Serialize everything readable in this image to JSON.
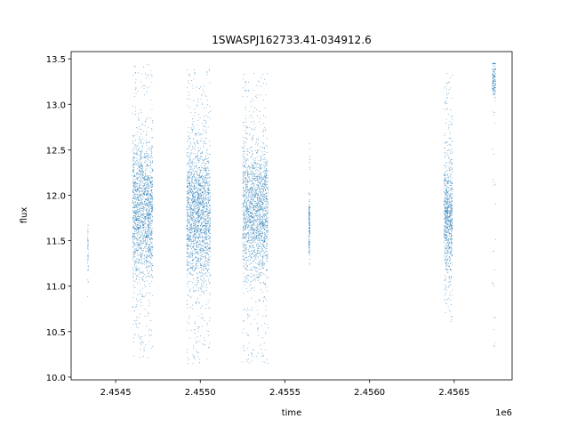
{
  "chart_data": {
    "type": "scatter",
    "title": "1SWASPJ162733.41-034912.6",
    "xlabel": "time",
    "ylabel": "flux",
    "x_offset_label": "1e6",
    "xlim": [
      2454237,
      2456842
    ],
    "ylim": [
      9.97,
      13.58
    ],
    "xticks": [
      2454500,
      2455000,
      2455500,
      2456000,
      2456500
    ],
    "xtick_labels": [
      "2.4545",
      "2.4550",
      "2.4555",
      "2.4560",
      "2.4565"
    ],
    "yticks": [
      10.0,
      10.5,
      11.0,
      11.5,
      12.0,
      12.5,
      13.0,
      13.5
    ],
    "ytick_labels": [
      "10.0",
      "10.5",
      "11.0",
      "11.5",
      "12.0",
      "12.5",
      "13.0",
      "13.5"
    ],
    "grid": false,
    "marker_color": "#1f77b4",
    "clusters": [
      {
        "x_range": [
          2454335,
          2454338
        ],
        "y_core": [
          11.1,
          11.6
        ],
        "y_extent": [
          10.8,
          11.8
        ],
        "points": 40
      },
      {
        "x_range": [
          2454600,
          2454720
        ],
        "y_core": [
          11.35,
          12.3
        ],
        "y_extent": [
          10.2,
          13.45
        ],
        "points": 1700
      },
      {
        "x_range": [
          2454920,
          2455060
        ],
        "y_core": [
          11.3,
          12.3
        ],
        "y_extent": [
          10.15,
          13.4
        ],
        "points": 2000
      },
      {
        "x_range": [
          2455250,
          2455400
        ],
        "y_core": [
          11.35,
          12.3
        ],
        "y_extent": [
          10.15,
          13.35
        ],
        "points": 1900
      },
      {
        "x_range": [
          2455640,
          2455648
        ],
        "y_core": [
          11.5,
          11.9
        ],
        "y_extent": [
          11.2,
          12.6
        ],
        "points": 140
      },
      {
        "x_range": [
          2456440,
          2456490
        ],
        "y_core": [
          11.35,
          12.2
        ],
        "y_extent": [
          10.6,
          13.35
        ],
        "points": 800
      },
      {
        "x_range": [
          2456725,
          2456745
        ],
        "y_core": [
          13.15,
          13.45
        ],
        "y_extent": [
          10.2,
          13.45
        ],
        "points": 160
      }
    ]
  }
}
